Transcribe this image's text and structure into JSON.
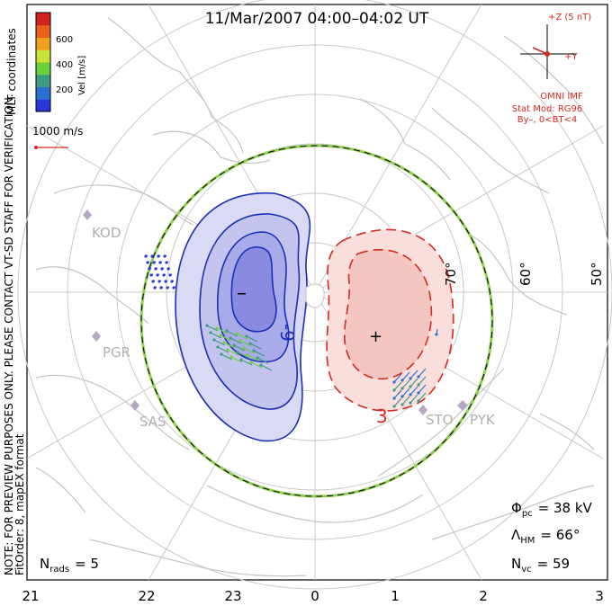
{
  "title": "11/Mar/2007 04:00–04:02 UT",
  "side_note": {
    "coord_label": "MLT coordinates",
    "preview_note": "NOTE: FOR PREVIEW PURPOSES ONLY. PLEASE CONTACT VT-SD STAFF FOR VERIFICATION.",
    "fit_info": "FitOrder: 8, mapEX format"
  },
  "colorbar": {
    "label": "Vel [m/s]",
    "ticks": [
      "200",
      "400",
      "600"
    ],
    "colors": [
      "#2a35d8",
      "#2f6fd0",
      "#3f9a86",
      "#6fcf3b",
      "#c9e23a",
      "#f2a11f",
      "#e8611a",
      "#d2231b"
    ]
  },
  "vector_scale": {
    "label": "1000 m/s"
  },
  "imf": {
    "z_label": "+Z (5 nT)",
    "y_label": "+Y",
    "source": "OMNI IMF",
    "model": "Stat Mod: RG96",
    "condition": "By–, 0<BT<4"
  },
  "latitude_labels": [
    "70°",
    "60°",
    "50°"
  ],
  "stations": [
    {
      "code": "KOD"
    },
    {
      "code": "PGR"
    },
    {
      "code": "SAS"
    },
    {
      "code": "STO"
    },
    {
      "code": "PYK"
    }
  ],
  "contour_labels": {
    "negative": "-9",
    "positive": "3"
  },
  "cell_markers": {
    "min": "–",
    "max": "+"
  },
  "stats": {
    "phi_symbol": "Φ",
    "phi_sub": "pc",
    "phi_value": "= 38 kV",
    "lambda_symbol": "Λ",
    "lambda_sub": "HM",
    "lambda_value": "= 66°",
    "nvc_symbol": "N",
    "nvc_sub": "vc",
    "nvc_value": "= 59",
    "nrads_symbol": "N",
    "nrads_sub": "rads",
    "nrads_value": "= 5"
  },
  "mlt_axis": [
    "21",
    "22",
    "23",
    "0",
    "1",
    "2",
    "3"
  ],
  "colors": {
    "frame": "#000000",
    "grid": "#c8c8c8",
    "coast": "#c4c4c4",
    "negative_line": "#1c2fb4",
    "negative_fill": "#8a8ae0",
    "positive_line": "#d42a22",
    "positive_fill": "#f3b8b3",
    "hmb_green": "#90d050",
    "imf_red": "#d42a22",
    "station": "#b7a6c4"
  }
}
